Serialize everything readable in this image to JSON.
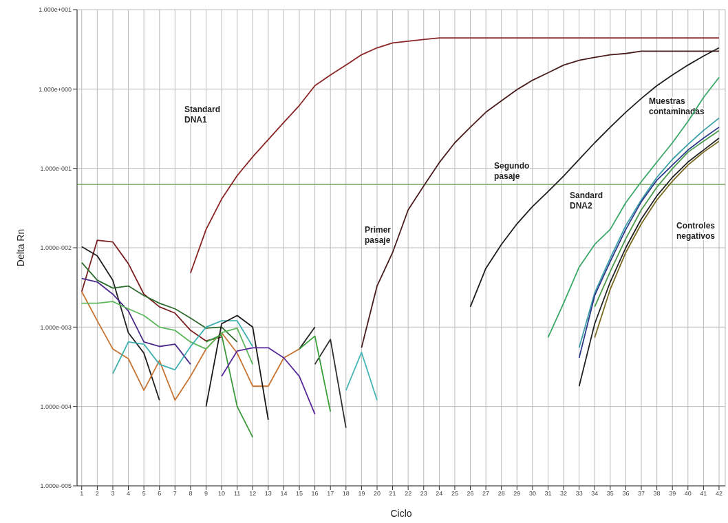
{
  "chart_data": {
    "type": "line",
    "xlabel": "Ciclo",
    "ylabel": "Delta Rn",
    "log": "y",
    "grid": true,
    "marker": "none",
    "line_style": "solid",
    "xlim": [
      0.7,
      42.4
    ],
    "xticks": [
      1,
      2,
      3,
      4,
      5,
      6,
      7,
      8,
      9,
      10,
      11,
      12,
      13,
      14,
      15,
      16,
      17,
      18,
      19,
      20,
      21,
      22,
      23,
      24,
      25,
      26,
      27,
      28,
      29,
      30,
      31,
      32,
      33,
      34,
      35,
      36,
      37,
      38,
      39,
      40,
      41,
      42
    ],
    "ylim": [
      1e-05,
      10
    ],
    "yticks": [
      {
        "value": 10,
        "label": "1.000e+001"
      },
      {
        "value": 1,
        "label": "1.000e+000"
      },
      {
        "value": 0.1,
        "label": "1.000e-001"
      },
      {
        "value": 0.01,
        "label": "1.000e-002"
      },
      {
        "value": 0.001,
        "label": "1.000e-003"
      },
      {
        "value": 0.0001,
        "label": "1.000e-004"
      },
      {
        "value": 1e-05,
        "label": "1.000e-005"
      }
    ],
    "ref_lines": [
      {
        "axis": "y",
        "value": 0.063,
        "color": "#6f9a55"
      }
    ],
    "annotations": [
      "Standard\nDNA1",
      "Primer\npasaje",
      "Segundo\npasaje",
      "Sandard\nDNA2",
      "Muestras\ncontaminadas",
      "Controles\nnegativos"
    ],
    "series": [
      {
        "color": "#8b2525",
        "x": [
          8,
          9,
          10,
          11,
          12,
          13,
          14,
          15,
          16,
          17,
          18,
          19,
          20,
          21,
          22,
          23,
          24,
          25,
          26,
          27,
          28,
          29,
          30,
          31,
          32,
          33,
          34,
          35,
          36,
          37,
          38,
          39,
          40,
          41,
          42
        ],
        "values": [
          0.0048,
          0.017,
          0.041,
          0.081,
          0.14,
          0.23,
          0.38,
          0.62,
          1.1,
          1.5,
          2.0,
          2.7,
          3.3,
          3.8,
          4.0,
          4.2,
          4.4,
          4.4,
          4.4,
          4.4,
          4.4,
          4.4,
          4.4,
          4.4,
          4.4,
          4.4,
          4.4,
          4.4,
          4.4,
          4.4,
          4.4,
          4.4,
          4.4,
          4.4,
          4.4
        ]
      },
      {
        "color": "#4a1c1c",
        "x": [
          19,
          20,
          21,
          22,
          23,
          24,
          25,
          26,
          27,
          28,
          29,
          30,
          31,
          32,
          33,
          34,
          35,
          36,
          37,
          38,
          39,
          40,
          41,
          42
        ],
        "values": [
          0.00055,
          0.0033,
          0.0087,
          0.03,
          0.06,
          0.118,
          0.21,
          0.33,
          0.51,
          0.71,
          0.98,
          1.29,
          1.6,
          2.0,
          2.3,
          2.5,
          2.7,
          2.8,
          3.0,
          3.0,
          3.0,
          3.0,
          3.0,
          3.0
        ]
      },
      {
        "color": "#1e1e1e",
        "x": [
          26,
          27,
          28,
          29,
          30,
          31,
          32,
          33,
          34,
          35,
          36,
          37,
          38,
          39,
          40,
          41,
          42
        ],
        "values": [
          0.0018,
          0.0055,
          0.011,
          0.02,
          0.033,
          0.051,
          0.08,
          0.13,
          0.21,
          0.33,
          0.51,
          0.76,
          1.1,
          1.5,
          2.0,
          2.6,
          3.3
        ]
      },
      {
        "color": "#3aa866",
        "x": [
          31,
          32,
          33,
          34,
          35,
          36,
          37,
          38,
          39,
          40,
          41,
          42
        ],
        "values": [
          0.00074,
          0.002,
          0.0057,
          0.011,
          0.017,
          0.037,
          0.068,
          0.12,
          0.21,
          0.39,
          0.78,
          1.4
        ]
      },
      {
        "color": "#3a9fa8",
        "x": [
          33,
          34,
          35,
          36,
          37,
          38,
          39,
          40,
          41,
          42
        ],
        "values": [
          0.00055,
          0.0027,
          0.0074,
          0.019,
          0.04,
          0.077,
          0.13,
          0.2,
          0.3,
          0.43
        ]
      },
      {
        "color": "#2b3a8a",
        "x": [
          33,
          34,
          35,
          36,
          37,
          38,
          39,
          40,
          41,
          42
        ],
        "values": [
          0.00041,
          0.0025,
          0.0067,
          0.017,
          0.038,
          0.071,
          0.11,
          0.17,
          0.24,
          0.33
        ]
      },
      {
        "color": "#222222",
        "x": [
          33,
          34,
          35,
          36,
          37,
          38,
          39,
          40,
          41,
          42
        ],
        "values": [
          0.00018,
          0.0011,
          0.0037,
          0.01,
          0.023,
          0.045,
          0.077,
          0.12,
          0.17,
          0.24
        ]
      },
      {
        "color": "#7a6a20",
        "x": [
          34,
          35,
          36,
          37,
          38,
          39,
          40,
          41,
          42
        ],
        "values": [
          0.00074,
          0.003,
          0.0087,
          0.02,
          0.04,
          0.069,
          0.11,
          0.16,
          0.22
        ]
      },
      {
        "color": "#4a9a4a",
        "x": [
          34,
          35,
          36,
          37,
          38,
          39,
          40,
          41,
          42
        ],
        "values": [
          0.0018,
          0.005,
          0.013,
          0.03,
          0.058,
          0.099,
          0.16,
          0.22,
          0.3
        ]
      },
      {
        "color": "#7a2020",
        "x": [
          1,
          2,
          3,
          4,
          5,
          6,
          7,
          8,
          9,
          10
        ],
        "values": [
          0.0028,
          0.0124,
          0.0118,
          0.0063,
          0.0026,
          0.0018,
          0.0015,
          0.00091,
          0.00067,
          0.00075
        ]
      },
      {
        "color": "#202020",
        "x": [
          1,
          2,
          3,
          4,
          5,
          6
        ],
        "values": [
          0.0103,
          0.0079,
          0.0039,
          0.00085,
          0.00047,
          0.00012
        ]
      },
      {
        "color": "#2e6b2e",
        "x": [
          1,
          2,
          3,
          4,
          5,
          6,
          7,
          8,
          9,
          10,
          11
        ],
        "values": [
          0.0065,
          0.0039,
          0.0031,
          0.0033,
          0.0025,
          0.002,
          0.0017,
          0.0013,
          0.00097,
          0.001,
          0.00065
        ]
      },
      {
        "color": "#4b2a8a",
        "x": [
          1,
          2,
          3,
          4,
          5,
          6,
          7,
          8
        ],
        "values": [
          0.0041,
          0.0037,
          0.0026,
          0.0016,
          0.00065,
          0.00057,
          0.00061,
          0.00034
        ]
      },
      {
        "color": "#c87533",
        "x": [
          1,
          2,
          3,
          4,
          5,
          6,
          7,
          8,
          9,
          10,
          11,
          12,
          13,
          14,
          15
        ],
        "values": [
          0.0028,
          0.0012,
          0.00053,
          0.0004,
          0.00016,
          0.00038,
          0.00012,
          0.00024,
          0.00053,
          0.00085,
          0.00047,
          0.00018,
          0.00018,
          0.00041,
          0.00053
        ]
      },
      {
        "color": "#5cb85c",
        "x": [
          1,
          2,
          3,
          4,
          5,
          6,
          7,
          8,
          9,
          10,
          11,
          12
        ],
        "values": [
          0.002,
          0.002,
          0.0021,
          0.0017,
          0.0014,
          0.001,
          0.00091,
          0.00065,
          0.00053,
          0.00085,
          0.00097,
          0.00034
        ]
      },
      {
        "color": "#40b0b0",
        "x": [
          3,
          4,
          5,
          6,
          7,
          8,
          9,
          10,
          11,
          12
        ],
        "values": [
          0.00026,
          0.00065,
          0.00061,
          0.00034,
          0.00029,
          0.00057,
          0.001,
          0.0012,
          0.0012,
          0.00057
        ]
      },
      {
        "color": "#1a1a1a",
        "x": [
          9,
          10,
          11,
          12,
          13
        ],
        "values": [
          0.0001,
          0.0011,
          0.0014,
          0.001,
          6.8e-05
        ]
      },
      {
        "color": "#3a9a3a",
        "x": [
          9,
          10,
          11,
          12
        ],
        "values": [
          0.00065,
          0.0008,
          0.0001,
          4.1e-05
        ]
      },
      {
        "color": "#5a2a9a",
        "x": [
          10,
          11,
          12,
          13,
          14,
          15,
          16
        ],
        "values": [
          0.00024,
          0.0005,
          0.00055,
          0.00055,
          0.00041,
          0.00024,
          8e-05
        ]
      },
      {
        "color": "#262626",
        "x": [
          15,
          16
        ],
        "values": [
          0.00053,
          0.001
        ]
      },
      {
        "color": "#303030",
        "x": [
          16,
          17,
          18
        ],
        "values": [
          0.00034,
          0.0007,
          5.4e-05
        ]
      },
      {
        "color": "#38a038",
        "x": [
          15,
          16,
          17
        ],
        "values": [
          0.00053,
          0.00077,
          8.6e-05
        ]
      },
      {
        "color": "#45b5b5",
        "x": [
          18,
          19,
          20
        ],
        "values": [
          0.00016,
          0.00048,
          0.00012
        ]
      }
    ]
  }
}
